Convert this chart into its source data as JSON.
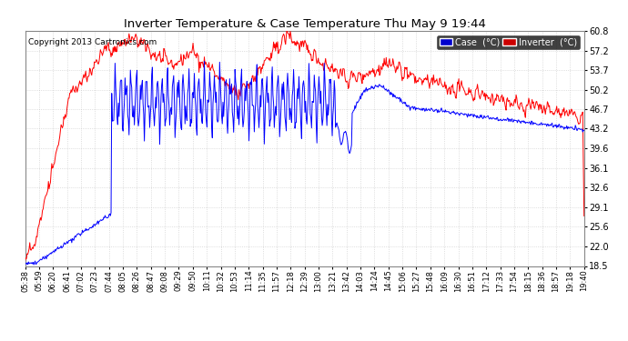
{
  "title": "Inverter Temperature & Case Temperature Thu May 9 19:44",
  "copyright": "Copyright 2013 Cartronics.com",
  "background_color": "#ffffff",
  "plot_bg_color": "#ffffff",
  "grid_color": "#bbbbbb",
  "ylim": [
    18.5,
    60.8
  ],
  "yticks": [
    18.5,
    22.0,
    25.6,
    29.1,
    32.6,
    36.1,
    39.6,
    43.2,
    46.7,
    50.2,
    53.7,
    57.2,
    60.8
  ],
  "xtick_labels": [
    "05:38",
    "05:59",
    "06:20",
    "06:41",
    "07:02",
    "07:23",
    "07:44",
    "08:05",
    "08:26",
    "08:47",
    "09:08",
    "09:29",
    "09:50",
    "10:11",
    "10:32",
    "10:53",
    "11:14",
    "11:35",
    "11:57",
    "12:18",
    "12:39",
    "13:00",
    "13:21",
    "13:42",
    "14:03",
    "14:24",
    "14:45",
    "15:06",
    "15:27",
    "15:48",
    "16:09",
    "16:30",
    "16:51",
    "17:12",
    "17:33",
    "17:54",
    "18:15",
    "18:36",
    "18:57",
    "19:18",
    "19:40"
  ],
  "case_color": "#0000ff",
  "inverter_color": "#ff0000",
  "legend_case_bg": "#0000cc",
  "legend_inv_bg": "#cc0000",
  "legend_text_color": "#ffffff"
}
